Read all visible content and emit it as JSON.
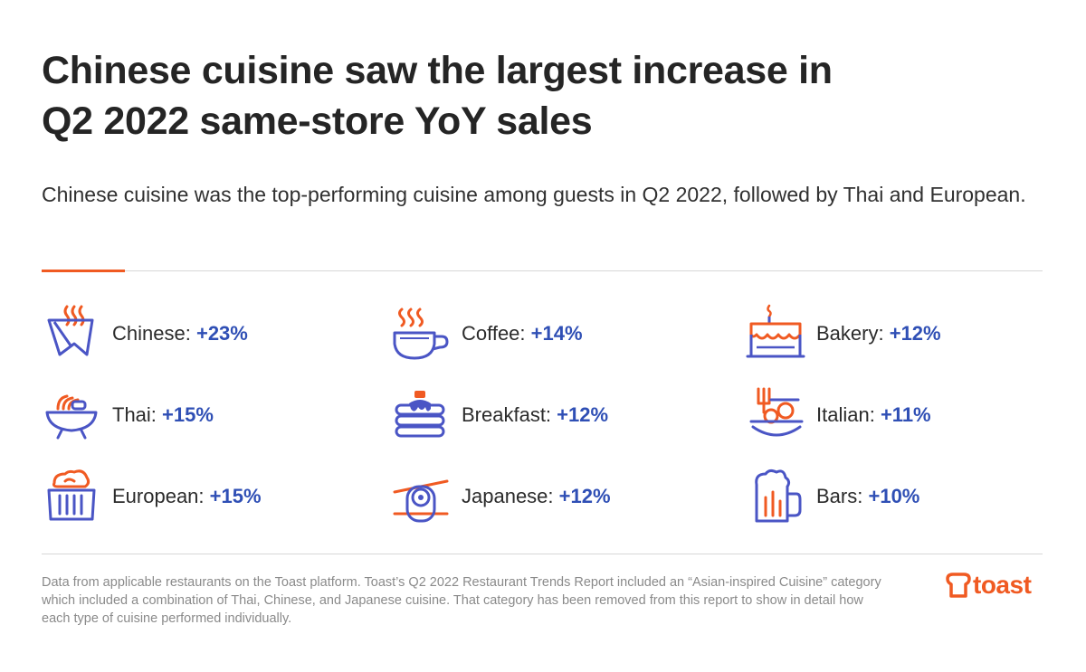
{
  "title_lines": [
    "Chinese cuisine saw the largest increase in",
    "Q2 2022 same-store YoY sales"
  ],
  "subtitle": "Chinese cuisine was the top-performing cuisine among guests in Q2 2022, followed by Thai and European.",
  "colors": {
    "accent": "#f05a22",
    "icon_blue": "#4a55c5",
    "value_blue": "#2f4fb5"
  },
  "cuisines": [
    {
      "name": "Chinese:",
      "value": "+23%",
      "icon": "noodle-box-icon"
    },
    {
      "name": "Thai:",
      "value": "+15%",
      "icon": "noodle-bowl-icon"
    },
    {
      "name": "European:",
      "value": "+15%",
      "icon": "bread-basket-icon"
    },
    {
      "name": "Coffee:",
      "value": "+14%",
      "icon": "coffee-cup-icon"
    },
    {
      "name": "Breakfast:",
      "value": "+12%",
      "icon": "pancakes-icon"
    },
    {
      "name": "Japanese:",
      "value": "+12%",
      "icon": "sushi-roll-icon"
    },
    {
      "name": "Bakery:",
      "value": "+12%",
      "icon": "cake-icon"
    },
    {
      "name": "Italian:",
      "value": "+11%",
      "icon": "pasta-plate-icon"
    },
    {
      "name": "Bars:",
      "value": "+10%",
      "icon": "beer-mug-icon"
    }
  ],
  "footnote": "Data from applicable restaurants on the Toast platform. Toast’s Q2 2022 Restaurant Trends Report included an “Asian-inspired Cuisine” category which included a combination of Thai, Chinese, and Japanese cuisine. That category has been removed from this report to show in detail how each type of cuisine performed individually.",
  "logo": {
    "text": "toast",
    "icon": "toast-logo-icon"
  }
}
